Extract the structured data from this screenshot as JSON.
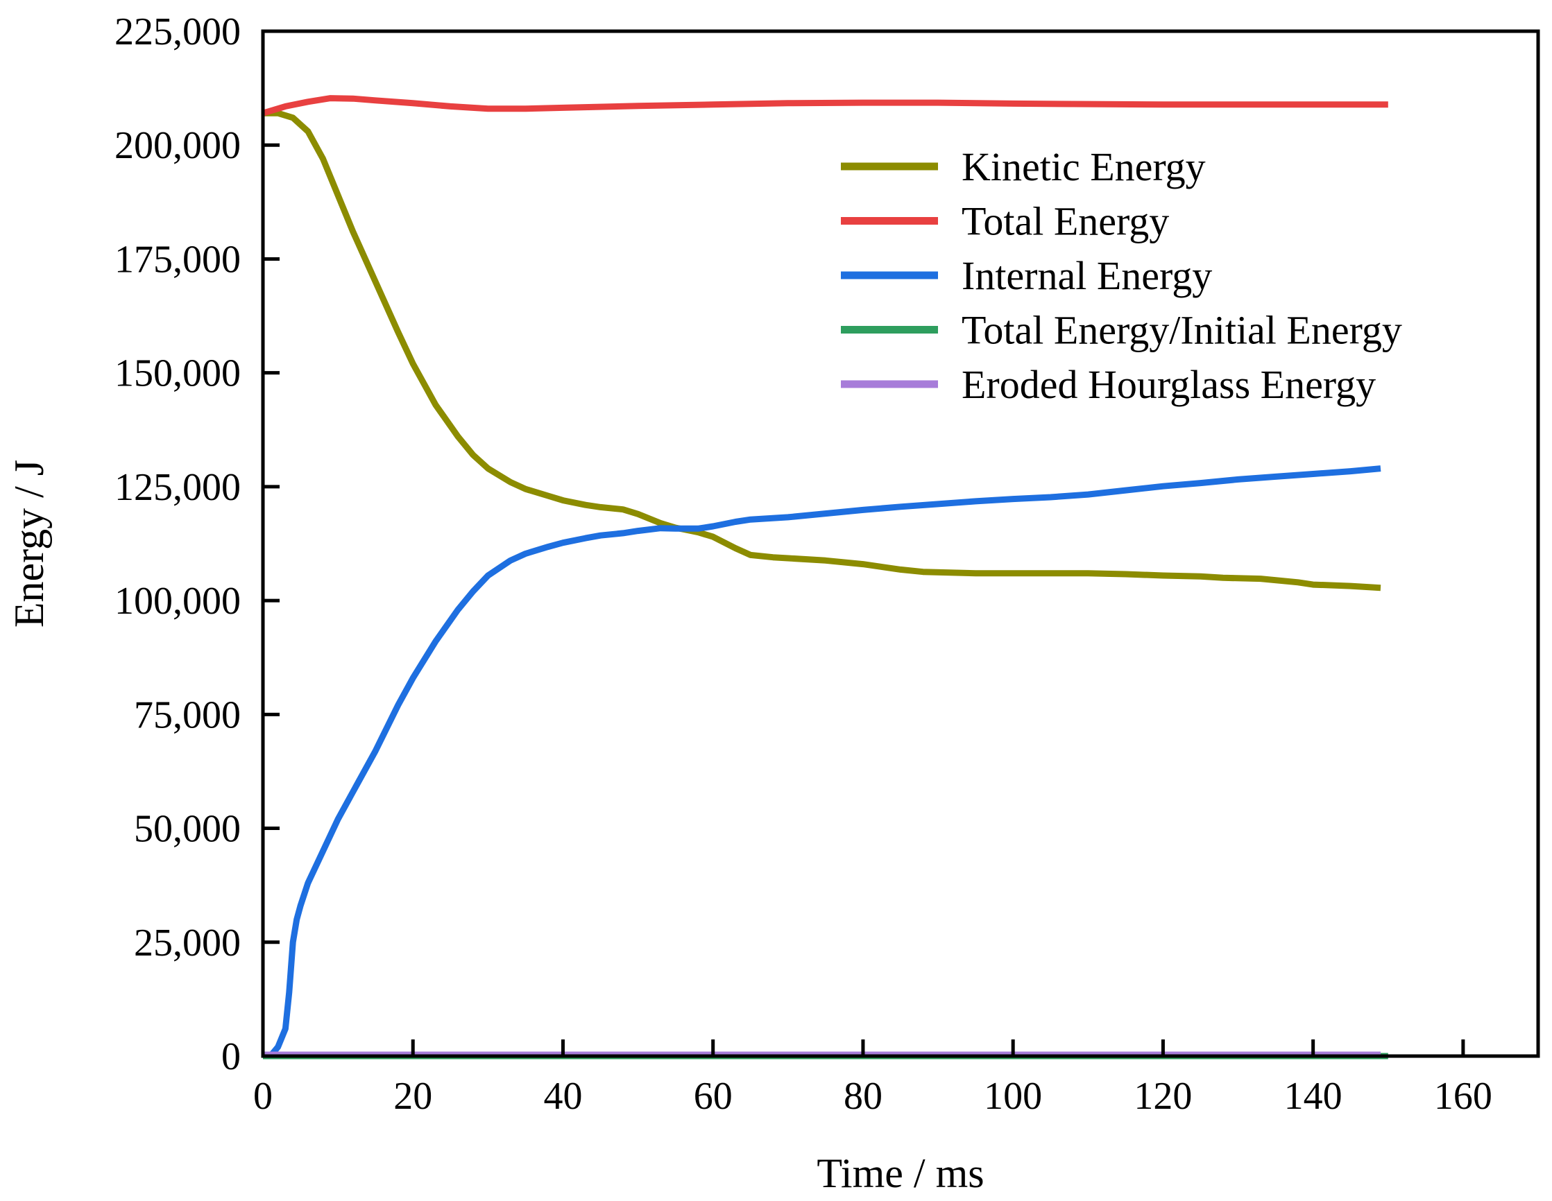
{
  "chart_data": {
    "type": "line",
    "title": "",
    "xlabel": "Time / ms",
    "ylabel": "Energy / J",
    "xlim": [
      0,
      170
    ],
    "ylim": [
      0,
      225000
    ],
    "xticks": [
      0,
      20,
      40,
      60,
      80,
      100,
      120,
      140,
      160
    ],
    "xtick_labels": [
      "0",
      "20",
      "40",
      "60",
      "80",
      "100",
      "120",
      "140",
      "160"
    ],
    "yticks": [
      0,
      25000,
      50000,
      75000,
      100000,
      125000,
      150000,
      175000,
      200000,
      225000
    ],
    "ytick_labels": [
      "0",
      "25,000",
      "50,000",
      "75,000",
      "100,000",
      "125,000",
      "150,000",
      "175,000",
      "200,000",
      "225,000"
    ],
    "grid": false,
    "legend_position": "top-right",
    "series": [
      {
        "name": "Kinetic Energy",
        "color": "#8C8C00",
        "x": [
          0,
          2,
          4,
          6,
          8,
          10,
          12,
          15,
          18,
          20,
          23,
          26,
          28,
          30,
          33,
          35,
          38,
          40,
          43,
          45,
          48,
          50,
          53,
          55,
          58,
          60,
          63,
          65,
          68,
          70,
          75,
          80,
          85,
          88,
          95,
          100,
          110,
          115,
          120,
          125,
          128,
          133,
          138,
          140,
          145,
          149
        ],
        "y": [
          207000,
          207000,
          206000,
          203000,
          197000,
          189000,
          181000,
          170000,
          159000,
          152000,
          143000,
          136000,
          132000,
          129000,
          126000,
          124500,
          123000,
          122000,
          121000,
          120500,
          120000,
          119000,
          117000,
          116000,
          115000,
          114000,
          111500,
          110000,
          109500,
          109300,
          108800,
          108000,
          106800,
          106300,
          106000,
          106000,
          106000,
          105800,
          105500,
          105300,
          105000,
          104800,
          104000,
          103500,
          103200,
          102800
        ]
      },
      {
        "name": "Total Energy",
        "color": "#E84040",
        "x": [
          0,
          3,
          6,
          9,
          12,
          15,
          20,
          25,
          30,
          35,
          40,
          50,
          60,
          70,
          80,
          90,
          100,
          110,
          120,
          130,
          140,
          150
        ],
        "y": [
          207000,
          208500,
          209500,
          210300,
          210200,
          209800,
          209200,
          208500,
          208000,
          208000,
          208200,
          208600,
          208900,
          209200,
          209300,
          209300,
          209100,
          209000,
          208900,
          208900,
          208900,
          208900
        ]
      },
      {
        "name": "Internal Energy",
        "color": "#1E6FE0",
        "x": [
          0,
          1,
          2,
          3,
          3.5,
          4,
          4.5,
          5,
          6,
          8,
          10,
          12,
          15,
          18,
          20,
          23,
          26,
          28,
          30,
          33,
          35,
          38,
          40,
          43,
          45,
          48,
          50,
          53,
          55,
          58,
          60,
          63,
          65,
          70,
          75,
          80,
          85,
          90,
          95,
          100,
          105,
          110,
          115,
          120,
          125,
          130,
          135,
          140,
          145,
          149
        ],
        "y": [
          0,
          0,
          2000,
          6000,
          14000,
          25000,
          30000,
          33000,
          38000,
          45000,
          52000,
          58000,
          67000,
          77000,
          83000,
          91000,
          98000,
          102000,
          105500,
          108800,
          110300,
          111800,
          112700,
          113700,
          114300,
          114800,
          115300,
          115900,
          115800,
          115800,
          116300,
          117300,
          117800,
          118300,
          119100,
          119900,
          120600,
          121200,
          121800,
          122300,
          122700,
          123300,
          124200,
          125100,
          125800,
          126600,
          127200,
          127800,
          128400,
          129000
        ]
      },
      {
        "name": "Total Energy/Initial Energy",
        "color": "#2E9E5E",
        "x": [
          0,
          150
        ],
        "y": [
          0,
          0
        ]
      },
      {
        "name": "Eroded Hourglass Energy",
        "color": "#A77CD9",
        "x": [
          0,
          149
        ],
        "y": [
          300,
          300
        ]
      }
    ]
  }
}
